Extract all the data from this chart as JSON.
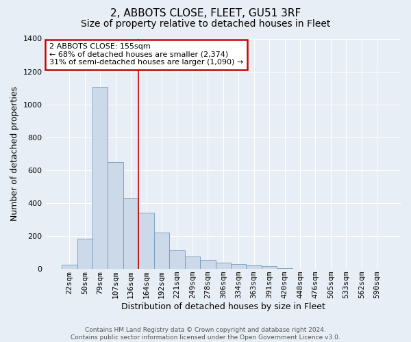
{
  "title": "2, ABBOTS CLOSE, FLEET, GU51 3RF",
  "subtitle": "Size of property relative to detached houses in Fleet",
  "xlabel": "Distribution of detached houses by size in Fleet",
  "ylabel": "Number of detached properties",
  "categories": [
    "22sqm",
    "50sqm",
    "79sqm",
    "107sqm",
    "136sqm",
    "164sqm",
    "192sqm",
    "221sqm",
    "249sqm",
    "278sqm",
    "306sqm",
    "334sqm",
    "363sqm",
    "391sqm",
    "420sqm",
    "448sqm",
    "476sqm",
    "505sqm",
    "533sqm",
    "562sqm",
    "590sqm"
  ],
  "values": [
    25,
    182,
    1108,
    650,
    430,
    340,
    220,
    115,
    75,
    55,
    40,
    30,
    20,
    18,
    5,
    2,
    1,
    0,
    0,
    0,
    0
  ],
  "bar_color": "#ccd9e8",
  "bar_edge_color": "#7099bb",
  "red_line_x": 4.5,
  "annotation_text": "2 ABBOTS CLOSE: 155sqm\n← 68% of detached houses are smaller (2,374)\n31% of semi-detached houses are larger (1,090) →",
  "annotation_box_facecolor": "#ffffff",
  "annotation_box_edgecolor": "#cc0000",
  "ylim": [
    0,
    1400
  ],
  "yticks": [
    0,
    200,
    400,
    600,
    800,
    1000,
    1200,
    1400
  ],
  "footer_text": "Contains HM Land Registry data © Crown copyright and database right 2024.\nContains public sector information licensed under the Open Government Licence v3.0.",
  "background_color": "#e8eef5",
  "plot_background_color": "#e8eef5",
  "grid_color": "#ffffff",
  "red_line_color": "#cc0000",
  "title_fontsize": 11,
  "subtitle_fontsize": 10,
  "xlabel_fontsize": 9,
  "ylabel_fontsize": 9,
  "tick_fontsize": 8,
  "annotation_fontsize": 8
}
